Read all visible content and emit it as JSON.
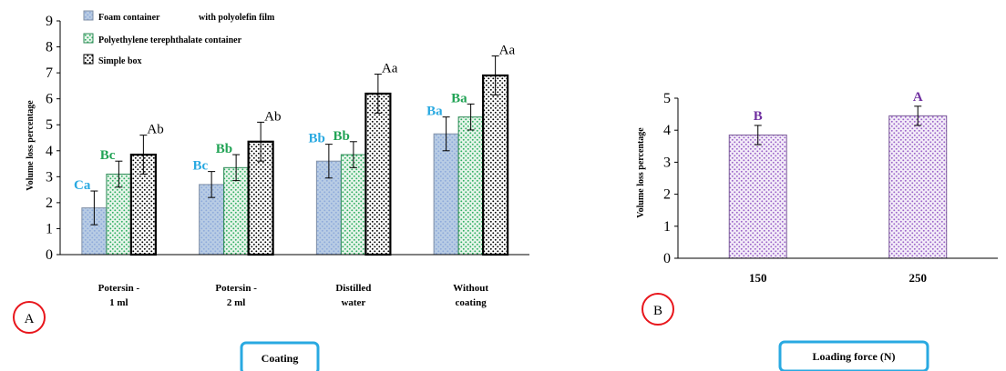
{
  "chart_data": [
    {
      "type": "bar",
      "panel_label": "A",
      "title": "",
      "xlabel": "Coating",
      "ylabel": "Volume loss percentage",
      "ylim": [
        0,
        9
      ],
      "yticks": [
        0,
        1,
        2,
        3,
        4,
        5,
        6,
        7,
        8,
        9
      ],
      "grid": false,
      "legend_position": "top-left",
      "categories": [
        [
          "Potersin -",
          "1 ml"
        ],
        [
          "Potersin -",
          "2 ml"
        ],
        [
          "Distilled",
          "water"
        ],
        [
          "Without",
          "coating"
        ]
      ],
      "series": [
        {
          "name": "Foam container",
          "name_suffix": "with polyolefin film",
          "values": [
            1.8,
            2.7,
            3.6,
            4.65
          ],
          "errors": [
            0.65,
            0.5,
            0.65,
            0.65
          ],
          "labels": [
            "Ca",
            "Bc",
            "Bb",
            "Ba"
          ],
          "label_color": "#29a9e1",
          "fill": "#b8cce4",
          "dot": "#8eaadb",
          "stroke": "#7f8fa6"
        },
        {
          "name": "Polyethylene terephthalate container",
          "values": [
            3.1,
            3.35,
            3.85,
            5.3
          ],
          "errors": [
            0.5,
            0.5,
            0.5,
            0.5
          ],
          "labels": [
            "Bc",
            "Bb",
            "Bb",
            "Ba"
          ],
          "label_color": "#21a355",
          "fill": "#e6f4ea",
          "dot": "#2eae61",
          "stroke": "#2e8b57"
        },
        {
          "name": "Simple box",
          "values": [
            3.85,
            4.35,
            6.2,
            6.9
          ],
          "errors": [
            0.75,
            0.75,
            0.75,
            0.75
          ],
          "labels": [
            "Ab",
            "Ab",
            "Aa",
            "Aa"
          ],
          "label_color": "#000000",
          "fill": "#ffffff",
          "dot": "#000000",
          "stroke": "#000000"
        }
      ]
    },
    {
      "type": "bar",
      "panel_label": "B",
      "title": "",
      "xlabel": "Loading force  (N)",
      "ylabel": "Volume loss percentage",
      "ylim": [
        0,
        5
      ],
      "yticks": [
        0,
        1,
        2,
        3,
        4,
        5
      ],
      "grid": false,
      "categories": [
        "150",
        "250"
      ],
      "series": [
        {
          "name": "",
          "values": [
            3.85,
            4.45
          ],
          "errors": [
            0.3,
            0.3
          ],
          "labels": [
            "B",
            "A"
          ],
          "label_color": "#7030a0",
          "fill": "#f3ecf8",
          "dot": "#9a62c8",
          "stroke": "#7b5a9a"
        }
      ]
    }
  ]
}
